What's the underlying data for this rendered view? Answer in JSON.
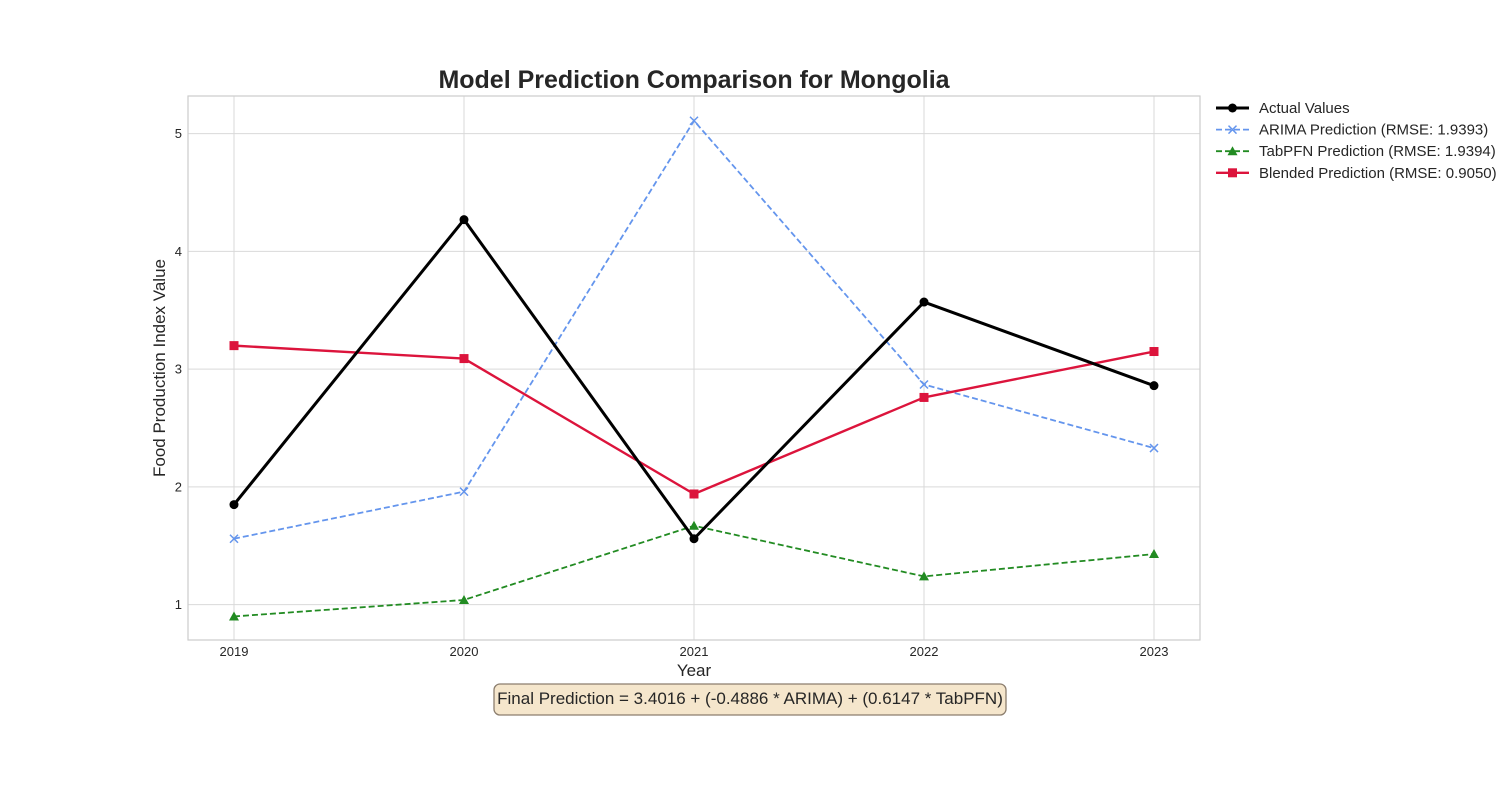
{
  "chart_data": {
    "type": "line",
    "title": "Model Prediction Comparison for Mongolia",
    "xlabel": "Year",
    "ylabel": "Food Production Index Value",
    "x": [
      2019,
      2020,
      2021,
      2022,
      2023
    ],
    "xlim": [
      2018.8,
      2023.2
    ],
    "ylim": [
      0.7,
      5.32
    ],
    "yticks": [
      1,
      2,
      3,
      4,
      5
    ],
    "grid": true,
    "legend_position": "outside top-right",
    "series": [
      {
        "name": "Actual Values",
        "values": [
          1.85,
          4.27,
          1.56,
          3.57,
          2.86
        ],
        "color": "#000000",
        "line_style": "solid",
        "marker": "circle"
      },
      {
        "name": "ARIMA Prediction (RMSE: 1.9393)",
        "values": [
          1.56,
          1.96,
          5.11,
          2.87,
          2.33
        ],
        "color": "#6495ED",
        "line_style": "dashed",
        "marker": "x"
      },
      {
        "name": "TabPFN Prediction (RMSE: 1.9394)",
        "values": [
          0.9,
          1.04,
          1.67,
          1.24,
          1.43
        ],
        "color": "#228B22",
        "line_style": "dashed",
        "marker": "triangle"
      },
      {
        "name": "Blended Prediction (RMSE: 0.9050)",
        "values": [
          3.2,
          3.09,
          1.94,
          2.76,
          3.15
        ],
        "color": "#DC143C",
        "line_style": "solid",
        "marker": "square"
      }
    ],
    "annotation": "Final Prediction = 3.4016 + (-0.4886 * ARIMA) + (0.6147 * TabPFN)",
    "colors": {
      "grid": "#d9d9d9",
      "frame": "#cccccc",
      "annotation_fill": "#f5e6cc",
      "annotation_border": "#8c7e6e"
    }
  }
}
